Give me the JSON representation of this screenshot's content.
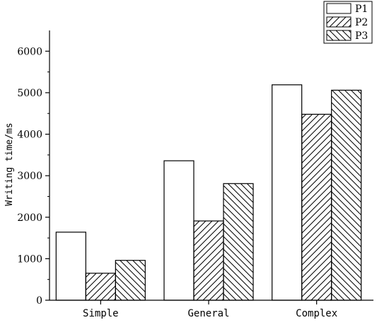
{
  "chart_data": {
    "type": "bar",
    "categories": [
      "Simple",
      "General",
      "Complex"
    ],
    "series": [
      {
        "name": "P1",
        "values": [
          1640,
          3360,
          5190
        ],
        "pattern": "none"
      },
      {
        "name": "P2",
        "values": [
          650,
          1910,
          4480
        ],
        "pattern": "forward-hatch"
      },
      {
        "name": "P3",
        "values": [
          960,
          2810,
          5060
        ],
        "pattern": "back-hatch"
      }
    ],
    "title": "",
    "xlabel": "",
    "ylabel": "Writing time/ms",
    "ylim": [
      0,
      6500
    ],
    "yticks": [
      0,
      1000,
      2000,
      3000,
      4000,
      5000,
      6000
    ],
    "legend_position": "top-right",
    "grid": false,
    "colors": {
      "bar_stroke": "#000000",
      "bar_fill": "#ffffff",
      "hatch": "#000000"
    }
  }
}
